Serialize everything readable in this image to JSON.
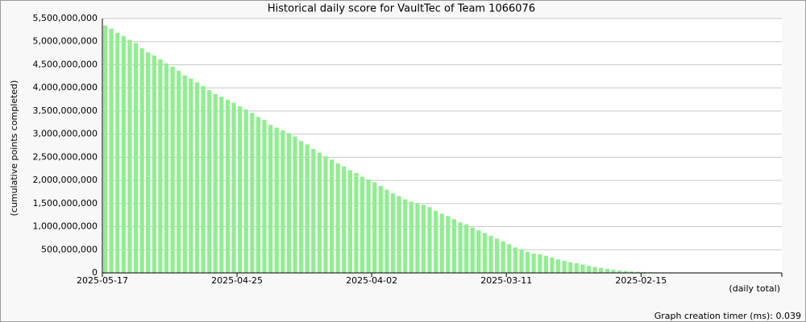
{
  "chart_data": {
    "type": "bar",
    "title": "Historical daily score for VaultTec of Team 1066076",
    "y_label": "(cumulative points completed)",
    "x_label": "(daily total)",
    "footer": "Graph creation timer (ms): 0.039",
    "color": "#90ee90",
    "grid": true,
    "ylim": [
      0,
      5500000000
    ],
    "yticks": [
      0,
      {
        "value": 500000000,
        "label": "500,000,000"
      },
      {
        "value": 1000000000,
        "label": "1,000,000,000"
      },
      {
        "value": 1500000000,
        "label": "1,500,000,000"
      },
      {
        "value": 2000000000,
        "label": "2,000,000,000"
      },
      {
        "value": 2500000000,
        "label": "2,500,000,000"
      },
      {
        "value": 3000000000,
        "label": "3,000,000,000"
      },
      {
        "value": 3500000000,
        "label": "3,500,000,000"
      },
      {
        "value": 4000000000,
        "label": "4,000,000,000"
      },
      {
        "value": 4500000000,
        "label": "4,500,000,000"
      },
      {
        "value": 5000000000,
        "label": "5,000,000,000"
      },
      {
        "value": 5500000000,
        "label": "5,500,000,000"
      }
    ],
    "categories": [
      "2025-05-17",
      null,
      null,
      null,
      null,
      null,
      null,
      null,
      null,
      null,
      null,
      null,
      null,
      null,
      null,
      null,
      null,
      null,
      null,
      null,
      null,
      null,
      "2025-04-25",
      null,
      null,
      null,
      null,
      null,
      null,
      null,
      null,
      null,
      null,
      null,
      null,
      null,
      null,
      null,
      null,
      null,
      null,
      null,
      null,
      null,
      "2025-04-02",
      null,
      null,
      null,
      null,
      null,
      null,
      null,
      null,
      null,
      null,
      null,
      null,
      null,
      null,
      null,
      null,
      null,
      null,
      null,
      null,
      null,
      "2025-03-11",
      null,
      null,
      null,
      null,
      null,
      null,
      null,
      null,
      null,
      null,
      null,
      null,
      null,
      null,
      null,
      null,
      null,
      null,
      null,
      null,
      null,
      "2025-02-15",
      null,
      null,
      null,
      null,
      null,
      null,
      null,
      null,
      null,
      null,
      null,
      null,
      null,
      null,
      null,
      null,
      null,
      null,
      null,
      null,
      null,
      null
    ],
    "values": [
      5350000000,
      5280000000,
      5190000000,
      5120000000,
      5040000000,
      4970000000,
      4860000000,
      4770000000,
      4700000000,
      4620000000,
      4530000000,
      4460000000,
      4370000000,
      4270000000,
      4200000000,
      4120000000,
      4040000000,
      3950000000,
      3870000000,
      3810000000,
      3740000000,
      3680000000,
      3600000000,
      3530000000,
      3460000000,
      3370000000,
      3310000000,
      3200000000,
      3140000000,
      3080000000,
      3020000000,
      2950000000,
      2850000000,
      2780000000,
      2680000000,
      2600000000,
      2520000000,
      2450000000,
      2370000000,
      2300000000,
      2220000000,
      2160000000,
      2080000000,
      2020000000,
      1960000000,
      1880000000,
      1800000000,
      1720000000,
      1660000000,
      1590000000,
      1540000000,
      1510000000,
      1470000000,
      1420000000,
      1340000000,
      1280000000,
      1230000000,
      1160000000,
      1090000000,
      1050000000,
      980000000,
      920000000,
      860000000,
      800000000,
      740000000,
      680000000,
      620000000,
      550000000,
      510000000,
      460000000,
      420000000,
      400000000,
      370000000,
      330000000,
      290000000,
      260000000,
      230000000,
      210000000,
      180000000,
      150000000,
      130000000,
      110000000,
      90000000,
      70000000,
      50000000,
      40000000,
      30000000,
      25000000,
      20000000,
      15000000,
      12000000,
      10000000,
      8000000,
      6000000,
      5000000,
      4000000,
      3000000,
      2000000,
      1000000,
      500000,
      null,
      null,
      null,
      null,
      null,
      null,
      null,
      null,
      null,
      null,
      null
    ]
  }
}
